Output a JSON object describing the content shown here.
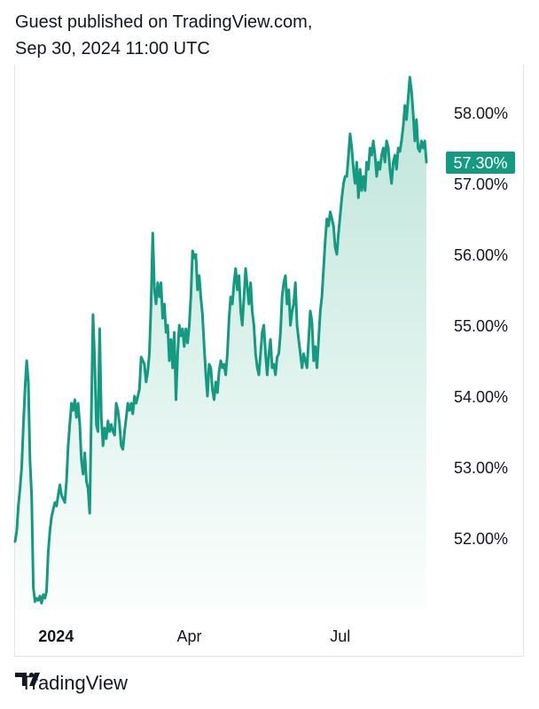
{
  "header": {
    "line1": "Guest published on TradingView.com,",
    "line2": "Sep 30, 2024 11:00 UTC"
  },
  "footer": {
    "brand": "TradingView"
  },
  "colors": {
    "line": "#159a82",
    "area_top": "#b9e3d7",
    "label_bg": "#159a82",
    "text": "#131722"
  },
  "chart_data": {
    "type": "area",
    "title": "",
    "xlabel": "",
    "ylabel": "",
    "ylim": [
      51.0,
      58.6
    ],
    "y_ticks": [
      "58.00%",
      "57.00%",
      "56.00%",
      "55.00%",
      "54.00%",
      "53.00%",
      "52.00%"
    ],
    "y_tick_values": [
      58,
      57,
      56,
      55,
      54,
      53,
      52
    ],
    "x_ticks": [
      {
        "label": "2024",
        "date": "2024-01-01",
        "bold": true
      },
      {
        "label": "Apr",
        "date": "2024-04-01",
        "bold": false
      },
      {
        "label": "Jul",
        "date": "2024-07-01",
        "bold": false
      }
    ],
    "last_value_label": "57.30%",
    "grid": false,
    "series": [
      {
        "values": [
          [
            "2023-12-18",
            51.95
          ],
          [
            "2023-12-19",
            52.1
          ],
          [
            "2023-12-20",
            52.45
          ],
          [
            "2023-12-21",
            52.7
          ],
          [
            "2023-12-22",
            53.0
          ],
          [
            "2023-12-23",
            53.6
          ],
          [
            "2023-12-24",
            54.1
          ],
          [
            "2023-12-25",
            54.5
          ],
          [
            "2023-12-26",
            54.2
          ],
          [
            "2023-12-27",
            53.1
          ],
          [
            "2023-12-28",
            52.6
          ],
          [
            "2023-12-29",
            51.3
          ],
          [
            "2023-12-30",
            51.1
          ],
          [
            "2023-12-31",
            51.15
          ],
          [
            "2024-01-01",
            51.12
          ],
          [
            "2024-01-02",
            51.18
          ],
          [
            "2024-01-03",
            51.08
          ],
          [
            "2024-01-04",
            51.2
          ],
          [
            "2024-01-05",
            51.15
          ],
          [
            "2024-01-06",
            51.25
          ],
          [
            "2024-01-07",
            51.8
          ],
          [
            "2024-01-08",
            52.1
          ],
          [
            "2024-01-09",
            52.3
          ],
          [
            "2024-01-10",
            52.4
          ],
          [
            "2024-01-11",
            52.5
          ],
          [
            "2024-01-12",
            52.45
          ],
          [
            "2024-01-13",
            52.6
          ],
          [
            "2024-01-14",
            52.75
          ],
          [
            "2024-01-15",
            52.6
          ],
          [
            "2024-01-16",
            52.55
          ],
          [
            "2024-01-17",
            52.5
          ],
          [
            "2024-01-18",
            52.8
          ],
          [
            "2024-01-19",
            53.3
          ],
          [
            "2024-01-20",
            53.6
          ],
          [
            "2024-01-21",
            53.9
          ],
          [
            "2024-01-22",
            53.8
          ],
          [
            "2024-01-23",
            53.95
          ],
          [
            "2024-01-24",
            53.7
          ],
          [
            "2024-01-25",
            53.9
          ],
          [
            "2024-01-26",
            53.6
          ],
          [
            "2024-01-27",
            53.1
          ],
          [
            "2024-01-28",
            52.9
          ],
          [
            "2024-01-29",
            53.2
          ],
          [
            "2024-01-30",
            52.8
          ],
          [
            "2024-01-31",
            52.7
          ],
          [
            "2024-02-01",
            52.35
          ],
          [
            "2024-02-02",
            53.8
          ],
          [
            "2024-02-03",
            55.15
          ],
          [
            "2024-02-04",
            54.5
          ],
          [
            "2024-02-05",
            53.6
          ],
          [
            "2024-02-06",
            53.5
          ],
          [
            "2024-02-07",
            54.95
          ],
          [
            "2024-02-08",
            53.7
          ],
          [
            "2024-02-09",
            53.3
          ],
          [
            "2024-02-10",
            53.55
          ],
          [
            "2024-02-11",
            53.4
          ],
          [
            "2024-02-12",
            53.65
          ],
          [
            "2024-02-13",
            53.5
          ],
          [
            "2024-02-14",
            53.6
          ],
          [
            "2024-02-15",
            53.5
          ],
          [
            "2024-02-16",
            53.45
          ],
          [
            "2024-02-17",
            53.9
          ],
          [
            "2024-02-18",
            53.8
          ],
          [
            "2024-02-19",
            53.6
          ],
          [
            "2024-02-20",
            53.3
          ],
          [
            "2024-02-21",
            53.25
          ],
          [
            "2024-02-22",
            53.5
          ],
          [
            "2024-02-23",
            53.7
          ],
          [
            "2024-02-24",
            53.9
          ],
          [
            "2024-02-25",
            53.8
          ],
          [
            "2024-02-26",
            53.9
          ],
          [
            "2024-02-27",
            53.75
          ],
          [
            "2024-02-28",
            54.0
          ],
          [
            "2024-02-29",
            53.9
          ],
          [
            "2024-03-01",
            54.0
          ],
          [
            "2024-03-02",
            54.1
          ],
          [
            "2024-03-03",
            54.55
          ],
          [
            "2024-03-04",
            54.5
          ],
          [
            "2024-03-05",
            54.45
          ],
          [
            "2024-03-06",
            54.2
          ],
          [
            "2024-03-07",
            54.35
          ],
          [
            "2024-03-08",
            54.6
          ],
          [
            "2024-03-09",
            55.3
          ],
          [
            "2024-03-10",
            56.3
          ],
          [
            "2024-03-11",
            55.5
          ],
          [
            "2024-03-12",
            55.3
          ],
          [
            "2024-03-13",
            55.6
          ],
          [
            "2024-03-14",
            55.4
          ],
          [
            "2024-03-15",
            55.6
          ],
          [
            "2024-03-16",
            55.1
          ],
          [
            "2024-03-17",
            55.3
          ],
          [
            "2024-03-18",
            54.9
          ],
          [
            "2024-03-19",
            55.0
          ],
          [
            "2024-03-20",
            54.5
          ],
          [
            "2024-03-21",
            54.8
          ],
          [
            "2024-03-22",
            54.4
          ],
          [
            "2024-03-23",
            54.9
          ],
          [
            "2024-03-24",
            53.95
          ],
          [
            "2024-03-25",
            54.6
          ],
          [
            "2024-03-26",
            55.0
          ],
          [
            "2024-03-27",
            54.85
          ],
          [
            "2024-03-28",
            54.95
          ],
          [
            "2024-03-29",
            54.7
          ],
          [
            "2024-03-30",
            54.95
          ],
          [
            "2024-03-31",
            54.75
          ],
          [
            "2024-04-01",
            55.0
          ],
          [
            "2024-04-02",
            55.4
          ],
          [
            "2024-04-03",
            56.05
          ],
          [
            "2024-04-04",
            55.95
          ],
          [
            "2024-04-05",
            56.0
          ],
          [
            "2024-04-06",
            55.5
          ],
          [
            "2024-04-07",
            55.7
          ],
          [
            "2024-04-08",
            55.4
          ],
          [
            "2024-04-09",
            55.15
          ],
          [
            "2024-04-10",
            54.7
          ],
          [
            "2024-04-11",
            54.3
          ],
          [
            "2024-04-12",
            54.0
          ],
          [
            "2024-04-13",
            54.45
          ],
          [
            "2024-04-14",
            54.4
          ],
          [
            "2024-04-15",
            54.1
          ],
          [
            "2024-04-16",
            53.95
          ],
          [
            "2024-04-17",
            54.2
          ],
          [
            "2024-04-18",
            54.05
          ],
          [
            "2024-04-19",
            54.35
          ],
          [
            "2024-04-20",
            54.5
          ],
          [
            "2024-04-21",
            54.4
          ],
          [
            "2024-04-22",
            54.45
          ],
          [
            "2024-04-23",
            54.3
          ],
          [
            "2024-04-24",
            54.6
          ],
          [
            "2024-04-25",
            55.1
          ],
          [
            "2024-04-26",
            55.4
          ],
          [
            "2024-04-27",
            55.3
          ],
          [
            "2024-04-28",
            55.6
          ],
          [
            "2024-04-29",
            55.8
          ],
          [
            "2024-04-30",
            55.5
          ],
          [
            "2024-05-01",
            55.7
          ],
          [
            "2024-05-02",
            55.2
          ],
          [
            "2024-05-03",
            55.0
          ],
          [
            "2024-05-04",
            55.4
          ],
          [
            "2024-05-05",
            55.8
          ],
          [
            "2024-05-06",
            55.55
          ],
          [
            "2024-05-07",
            55.3
          ],
          [
            "2024-05-08",
            55.6
          ],
          [
            "2024-05-09",
            55.2
          ],
          [
            "2024-05-10",
            55.0
          ],
          [
            "2024-05-11",
            54.6
          ],
          [
            "2024-05-12",
            54.4
          ],
          [
            "2024-05-13",
            54.3
          ],
          [
            "2024-05-14",
            54.6
          ],
          [
            "2024-05-15",
            54.9
          ],
          [
            "2024-05-16",
            55.0
          ],
          [
            "2024-05-17",
            54.6
          ],
          [
            "2024-05-18",
            54.3
          ],
          [
            "2024-05-19",
            54.6
          ],
          [
            "2024-05-20",
            54.8
          ],
          [
            "2024-05-21",
            54.4
          ],
          [
            "2024-05-22",
            54.45
          ],
          [
            "2024-05-23",
            54.3
          ],
          [
            "2024-05-24",
            54.55
          ],
          [
            "2024-05-25",
            54.6
          ],
          [
            "2024-05-26",
            54.9
          ],
          [
            "2024-05-27",
            55.4
          ],
          [
            "2024-05-28",
            55.6
          ],
          [
            "2024-05-29",
            55.7
          ],
          [
            "2024-05-30",
            55.3
          ],
          [
            "2024-05-31",
            55.5
          ],
          [
            "2024-06-01",
            55.0
          ],
          [
            "2024-06-02",
            55.2
          ],
          [
            "2024-06-03",
            55.3
          ],
          [
            "2024-06-04",
            55.6
          ],
          [
            "2024-06-05",
            55.0
          ],
          [
            "2024-06-06",
            54.8
          ],
          [
            "2024-06-07",
            54.6
          ],
          [
            "2024-06-08",
            54.4
          ],
          [
            "2024-06-09",
            54.6
          ],
          [
            "2024-06-10",
            54.5
          ],
          [
            "2024-06-11",
            54.4
          ],
          [
            "2024-06-12",
            54.8
          ],
          [
            "2024-06-13",
            55.2
          ],
          [
            "2024-06-14",
            55.05
          ],
          [
            "2024-06-15",
            54.5
          ],
          [
            "2024-06-16",
            54.7
          ],
          [
            "2024-06-17",
            54.4
          ],
          [
            "2024-06-18",
            54.8
          ],
          [
            "2024-06-19",
            55.2
          ],
          [
            "2024-06-20",
            55.4
          ],
          [
            "2024-06-21",
            55.8
          ],
          [
            "2024-06-22",
            56.2
          ],
          [
            "2024-06-23",
            56.5
          ],
          [
            "2024-06-24",
            56.4
          ],
          [
            "2024-06-25",
            56.6
          ],
          [
            "2024-06-26",
            56.5
          ],
          [
            "2024-06-27",
            56.4
          ],
          [
            "2024-06-28",
            56.1
          ],
          [
            "2024-06-29",
            56.0
          ],
          [
            "2024-06-30",
            56.3
          ],
          [
            "2024-07-01",
            56.55
          ],
          [
            "2024-07-02",
            56.8
          ],
          [
            "2024-07-03",
            57.0
          ],
          [
            "2024-07-04",
            57.1
          ],
          [
            "2024-07-05",
            57.1
          ],
          [
            "2024-07-06",
            57.4
          ],
          [
            "2024-07-07",
            57.7
          ],
          [
            "2024-07-08",
            57.5
          ],
          [
            "2024-07-09",
            57.2
          ],
          [
            "2024-07-10",
            57.0
          ],
          [
            "2024-07-11",
            57.3
          ],
          [
            "2024-07-12",
            56.8
          ],
          [
            "2024-07-13",
            57.2
          ],
          [
            "2024-07-14",
            56.9
          ],
          [
            "2024-07-15",
            57.1
          ],
          [
            "2024-07-16",
            56.9
          ],
          [
            "2024-07-17",
            57.3
          ],
          [
            "2024-07-18",
            57.2
          ],
          [
            "2024-07-19",
            57.5
          ],
          [
            "2024-07-20",
            57.4
          ],
          [
            "2024-07-21",
            57.6
          ],
          [
            "2024-07-22",
            57.4
          ],
          [
            "2024-07-23",
            57.1
          ],
          [
            "2024-07-24",
            57.3
          ],
          [
            "2024-07-25",
            57.2
          ],
          [
            "2024-07-26",
            57.4
          ],
          [
            "2024-07-27",
            57.5
          ],
          [
            "2024-07-28",
            57.3
          ],
          [
            "2024-07-29",
            57.6
          ],
          [
            "2024-07-30",
            57.5
          ],
          [
            "2024-07-31",
            57.2
          ],
          [
            "2024-08-01",
            57.0
          ],
          [
            "2024-08-02",
            57.3
          ],
          [
            "2024-08-03",
            57.4
          ],
          [
            "2024-08-04",
            57.2
          ],
          [
            "2024-08-05",
            57.5
          ],
          [
            "2024-08-06",
            57.45
          ],
          [
            "2024-08-07",
            57.6
          ],
          [
            "2024-08-08",
            57.8
          ],
          [
            "2024-08-09",
            58.1
          ],
          [
            "2024-08-10",
            57.9
          ],
          [
            "2024-08-11",
            58.2
          ],
          [
            "2024-08-12",
            58.5
          ],
          [
            "2024-08-13",
            58.3
          ],
          [
            "2024-08-14",
            58.0
          ],
          [
            "2024-08-15",
            57.6
          ],
          [
            "2024-08-16",
            57.9
          ],
          [
            "2024-08-17",
            57.5
          ],
          [
            "2024-08-18",
            57.45
          ],
          [
            "2024-08-19",
            57.6
          ],
          [
            "2024-08-20",
            57.5
          ],
          [
            "2024-08-21",
            57.6
          ],
          [
            "2024-08-22",
            57.3
          ]
        ]
      }
    ]
  }
}
